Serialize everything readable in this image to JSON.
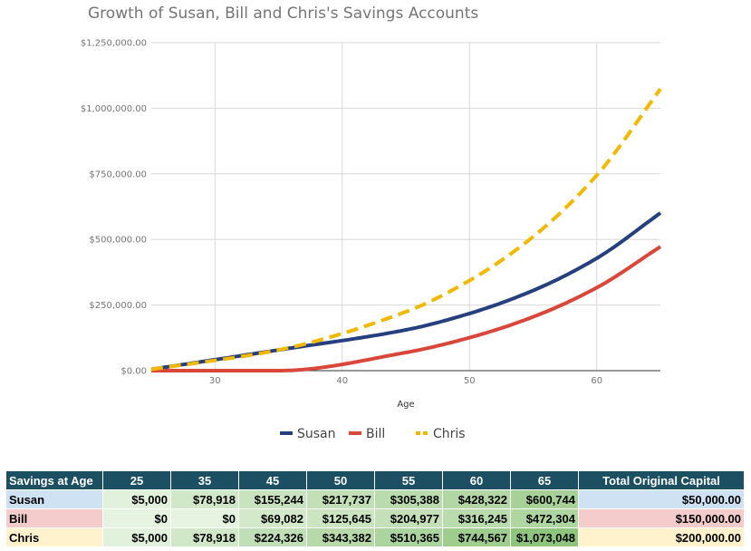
{
  "chart_data": {
    "type": "line",
    "title": "Growth of Susan, Bill  and Chris's Savings Accounts",
    "xlabel": "Age",
    "ylabel": "",
    "xlim": [
      25,
      65
    ],
    "ylim": [
      0,
      1250000
    ],
    "x_ticks": [
      30,
      40,
      50,
      60
    ],
    "x_tick_labels": [
      "30",
      "40",
      "50",
      "60"
    ],
    "y_ticks": [
      0,
      250000,
      500000,
      750000,
      1000000,
      1250000
    ],
    "y_tick_labels": [
      "$0.00",
      "$250,000.00",
      "$500,000.00",
      "$750,000.00",
      "$1,000,000.00",
      "$1,250,000.00"
    ],
    "grid": true,
    "legend_position": "bottom",
    "x": [
      25,
      35,
      45,
      50,
      55,
      60,
      65
    ],
    "series": [
      {
        "name": "Susan",
        "color": "#253f7f",
        "style": "solid",
        "values": [
          5000,
          78918,
          155244,
          217737,
          305388,
          428322,
          600744
        ]
      },
      {
        "name": "Bill",
        "color": "#d9473a",
        "style": "solid",
        "values": [
          0,
          0,
          69082,
          125645,
          204977,
          316245,
          472304
        ]
      },
      {
        "name": "Chris",
        "color": "#f1b800",
        "style": "dashed",
        "values": [
          5000,
          78918,
          224326,
          343382,
          510365,
          744567,
          1073048
        ]
      }
    ]
  },
  "table": {
    "header": [
      "Savings at Age",
      "25",
      "35",
      "45",
      "50",
      "55",
      "60",
      "65",
      "Total Original Capital"
    ],
    "rows": [
      {
        "name": "Susan",
        "values": [
          "$5,000",
          "$78,918",
          "$155,244",
          "$217,737",
          "$305,388",
          "$428,322",
          "$600,744"
        ],
        "capital": "$50,000.00"
      },
      {
        "name": "Bill",
        "values": [
          "$0",
          "$0",
          "$69,082",
          "$125,645",
          "$204,977",
          "$316,245",
          "$472,304"
        ],
        "capital": "$150,000.00"
      },
      {
        "name": "Chris",
        "values": [
          "$5,000",
          "$78,918",
          "$224,326",
          "$343,382",
          "$510,365",
          "$744,567",
          "$1,073,048"
        ],
        "capital": "$200,000.00"
      }
    ],
    "heat_colors": {
      "low": "#e6f3e0",
      "high": "#8fc47c"
    }
  }
}
